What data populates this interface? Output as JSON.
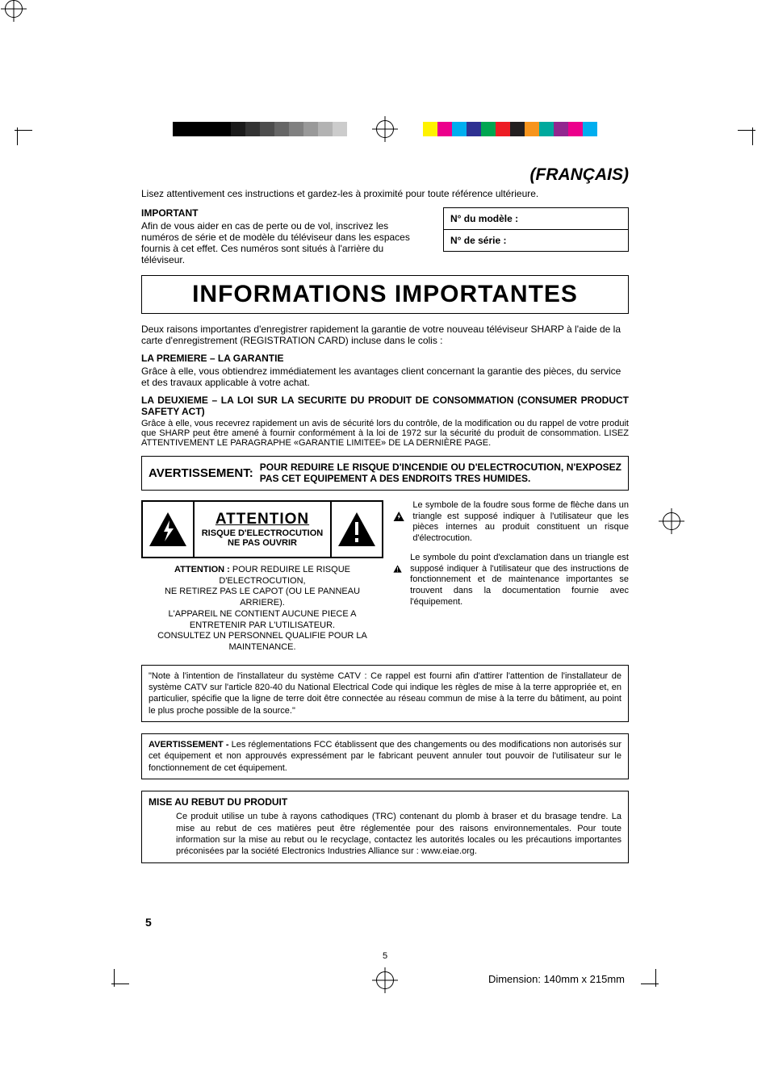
{
  "registration_bars": {
    "gray_widths": [
      36,
      36,
      18,
      18,
      18,
      18,
      18,
      18,
      18,
      18
    ],
    "gray_colors": [
      "#000000",
      "#000000",
      "#1a1a1a",
      "#333333",
      "#4d4d4d",
      "#666666",
      "#808080",
      "#999999",
      "#b3b3b3",
      "#cccccc"
    ],
    "cmyk_widths": [
      18,
      18,
      18,
      18,
      18,
      18,
      18,
      18,
      18,
      18,
      18,
      18
    ],
    "cmyk_colors": [
      "#fff200",
      "#ec008c",
      "#00aeef",
      "#2e3192",
      "#00a651",
      "#ed1c24",
      "#231f20",
      "#f7941d",
      "#00a99d",
      "#92278f",
      "#ec008c",
      "#00aeef"
    ]
  },
  "language": "(FRANÇAIS)",
  "intro": "Lisez attentivement ces instructions et gardez-les à proximité pour toute référence ultérieure.",
  "important": {
    "heading": "IMPORTANT",
    "body": "Afin de vous aider en cas de perte ou de vol, inscrivez les numéros de série et de modèle du téléviseur dans les espaces fournis à cet effet. Ces numéros sont situés à l'arrière du téléviseur."
  },
  "model_box": {
    "model": "N° du modèle :",
    "serial": "N° de série :"
  },
  "title": "INFORMATIONS IMPORTANTES",
  "registration_intro": "Deux raisons importantes d'enregistrer rapidement la garantie de votre nouveau téléviseur SHARP à l'aide de la carte d'enregistrement (REGISTRATION CARD) incluse dans le colis :",
  "reason1": {
    "heading": "LA PREMIERE – LA GARANTIE",
    "body": "Grâce à elle, vous obtiendrez immédiatement les avantages client concernant la garantie des pièces, du service et des travaux applicable à votre achat."
  },
  "reason2": {
    "heading": "LA DEUXIEME – LA LOI SUR LA SECURITE DU PRODUIT DE CONSOMMATION (CONSUMER PRODUCT SAFETY ACT)",
    "body": "Grâce à elle, vous recevrez rapidement un avis de sécurité lors du contrôle, de la modification ou du rappel de votre produit que SHARP peut être amené à fournir conformément à la loi de 1972 sur la sécurité du produit de consommation. LISEZ ATTENTIVEMENT LE PARAGRAPHE «GARANTIE LIMITEE» DE LA DERNIÈRE PAGE."
  },
  "warning": {
    "label": "AVERTISSEMENT:",
    "msg": "POUR REDUIRE LE RISQUE D'INCENDIE OU D'ELECTROCUTION, N'EXPOSEZ PAS CET EQUIPEMENT A DES ENDROITS TRES HUMIDES."
  },
  "caution_panel": {
    "title": "ATTENTION",
    "line1": "RISQUE D'ELECTROCUTION",
    "line2": "NE PAS OUVRIR"
  },
  "caution_text": {
    "label": "ATTENTION :",
    "body": " POUR REDUIRE LE RISQUE D'ELECTROCUTION,\nNE RETIREZ PAS LE CAPOT (OU LE PANNEAU ARRIERE).\nL'APPAREIL NE CONTIENT AUCUNE PIECE A ENTRETENIR PAR L'UTILISATEUR.\nCONSULTEZ UN PERSONNEL QUALIFIE POUR LA MAINTENANCE."
  },
  "symbol_bolt": "Le symbole de la foudre sous forme de flèche dans un triangle est supposé indiquer à l'utilisateur que les pièces internes au produit constituent un risque d'électrocution.",
  "symbol_excl": "Le symbole du point d'exclamation dans un triangle est supposé indiquer à l'utilisateur que des instructions de fonctionnement et de maintenance importantes se trouvent dans la documentation fournie avec l'équipement.",
  "catv_note": "\"Note à l'intention de l'installateur du système CATV : Ce rappel est fourni afin d'attirer l'attention de l'installateur de système CATV sur l'article 820-40 du National Electrical Code qui indique les règles de mise à la terre appropriée et, en particulier, spécifie que la ligne de terre doit être connectée au réseau commun de mise à la terre du bâtiment, au point le plus proche possible de la source.\"",
  "fcc_note": {
    "label": "AVERTISSEMENT - ",
    "body": "Les réglementations FCC établissent que des changements ou des modifications non autorisés sur cet équipement et non approuvés expressément par le fabricant peuvent annuler tout pouvoir de l'utilisateur sur le fonctionnement de cet équipement."
  },
  "disposal": {
    "heading": "MISE AU REBUT DU PRODUIT",
    "body": "Ce produit utilise un tube à rayons cathodiques (TRC) contenant du plomb à braser et du brasage tendre. La mise au rebut de ces matières peut être réglementée pour des raisons environnementales. Pour toute information sur la mise au rebut ou le recyclage, contactez les autorités locales ou les précautions importantes préconisées par la société Electronics Industries Alliance sur : www.eiae.org."
  },
  "page_number_bold": "5",
  "page_number_small": "5",
  "dimension": "Dimension: 140mm x 215mm"
}
